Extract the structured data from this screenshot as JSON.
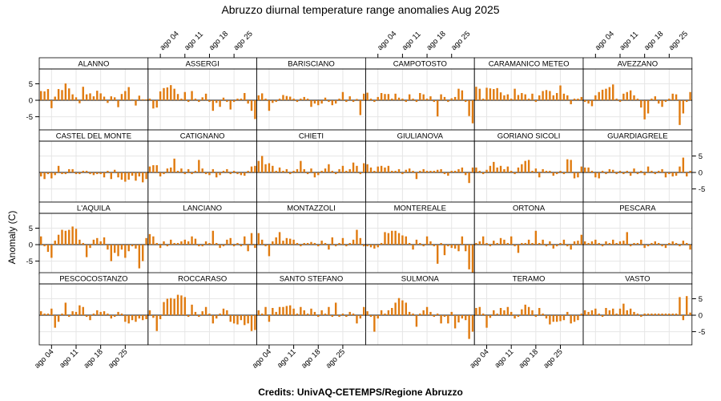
{
  "page": {
    "title": "Abruzzo diurnal temperature range anomalies Aug 2025",
    "credits": "Credits: UnivAQ-CETEMPS/Regione Abruzzo"
  },
  "colors": {
    "bar": "#e07b10",
    "zero_line": "#000000",
    "grid": "#e6e6e6",
    "panel_border": "#000000",
    "strip_bg": "#ffffff"
  },
  "chart_data": {
    "type": "bar",
    "layout": "4 rows x 6 columns small multiples",
    "ylabel": "Anomaly (C)",
    "ylim": [
      -9,
      9.5
    ],
    "yticks": [
      -5,
      0,
      5
    ],
    "ytick_labels": [
      "-5",
      "0",
      "5"
    ],
    "xlim": [
      0.5,
      31.5
    ],
    "xticks": [
      4,
      11,
      18,
      25
    ],
    "xtick_labels": [
      "ago 04",
      "ago 11",
      "ago 18",
      "ago 25"
    ],
    "grid": true,
    "panels": [
      {
        "name": "ALANNO",
        "values": [
          2.8,
          2.7,
          3.4,
          -2.4,
          1.1,
          3.4,
          3.1,
          5.1,
          3.6,
          1.8,
          0.9,
          -0.9,
          4.1,
          1.8,
          2.1,
          1.2,
          2.9,
          2.1,
          1.1,
          -0.8,
          1.2,
          0.9,
          -2.1,
          1.9,
          2.8,
          4.0,
          0.3,
          -1.6,
          1.4,
          0.3,
          0.3
        ]
      },
      {
        "name": "ASSERGI",
        "values": [
          0.5,
          -2.5,
          -2.2,
          2.7,
          3.7,
          3.9,
          4.6,
          3.5,
          1.9,
          0.5,
          2.5,
          -0.5,
          2.8,
          0.5,
          -0.5,
          0.9,
          2.0,
          -0.5,
          -3.2,
          -0.8,
          -2.0,
          0.8,
          -0.5,
          -2.8,
          -0.5,
          0.5,
          0.5,
          2.2,
          -1.0,
          -3.2,
          -5.7
        ]
      },
      {
        "name": "BARISCIANO",
        "values": [
          1.5,
          2.1,
          0.5,
          -3.2,
          -0.8,
          -0.5,
          0.5,
          1.6,
          1.3,
          1.1,
          0.5,
          -0.5,
          0.5,
          1.0,
          0.5,
          -2.0,
          -1.0,
          -1.5,
          -1.0,
          0.8,
          -0.5,
          -1.5,
          -1.0,
          0.5,
          2.5,
          -0.5,
          1.2,
          -0.5,
          0.4,
          -4.5,
          2.0
        ]
      },
      {
        "name": "CAMPOTOSTO",
        "values": [
          2.3,
          0.5,
          -0.5,
          1.0,
          2.2,
          1.9,
          1.9,
          0.5,
          2.0,
          0.8,
          0.5,
          -0.5,
          1.8,
          0.5,
          -0.5,
          2.2,
          1.8,
          0.5,
          1.2,
          -0.5,
          -4.9,
          1.8,
          1.0,
          -0.5,
          0.6,
          1.0,
          3.5,
          3.0,
          -0.5,
          -4.8,
          -7.0
        ]
      },
      {
        "name": "CARAMANICO METEO",
        "values": [
          4.1,
          3.5,
          0.5,
          3.8,
          3.6,
          3.4,
          3.7,
          2.4,
          1.5,
          1.8,
          0.5,
          3.5,
          1.6,
          2.2,
          1.8,
          0.5,
          2.0,
          -0.5,
          1.5,
          2.8,
          3.1,
          2.8,
          1.5,
          2.2,
          4.5,
          2.0,
          1.5,
          -1.2,
          0.5,
          0.5,
          1.0
        ]
      },
      {
        "name": "AVEZZANO",
        "values": [
          -0.5,
          -1.0,
          -1.8,
          1.5,
          2.5,
          3.2,
          3.5,
          4.0,
          4.8,
          0.5,
          -0.5,
          2.0,
          2.5,
          3.0,
          1.5,
          0.5,
          -2.2,
          -5.8,
          -4.0,
          0.5,
          1.2,
          -1.0,
          -2.0,
          -0.5,
          0.5,
          2.0,
          1.8,
          -7.5,
          -4.0,
          -0.5,
          2.5
        ]
      },
      {
        "name": "CASTEL DEL MONTE",
        "values": [
          -1.2,
          -2.0,
          -0.5,
          -1.8,
          -0.8,
          2.0,
          -0.5,
          -0.5,
          1.0,
          1.0,
          -0.5,
          -0.5,
          0.5,
          0.5,
          -0.5,
          -0.8,
          -0.5,
          -0.5,
          -1.5,
          0.5,
          -2.0,
          0.8,
          -1.5,
          -2.2,
          -2.8,
          -2.2,
          -1.0,
          -2.5,
          -1.2,
          -3.0,
          -2.0
        ]
      },
      {
        "name": "CATIGNANO",
        "values": [
          1.8,
          2.2,
          2.2,
          -1.2,
          -0.5,
          1.2,
          1.5,
          4.2,
          0.5,
          1.2,
          -0.5,
          1.0,
          -0.5,
          0.5,
          3.8,
          1.2,
          -0.5,
          -0.8,
          1.0,
          -1.5,
          -0.8,
          0.5,
          1.0,
          -0.5,
          0.5,
          -0.5,
          -0.8,
          -1.0,
          0.5,
          1.8,
          2.0
        ]
      },
      {
        "name": "CHIETI",
        "values": [
          3.5,
          5.0,
          2.5,
          2.8,
          2.0,
          0.5,
          1.5,
          0.5,
          1.0,
          -0.5,
          0.5,
          1.0,
          3.5,
          1.0,
          -0.5,
          1.2,
          -1.5,
          -0.8,
          0.5,
          1.2,
          2.5,
          0.5,
          -0.5,
          1.0,
          2.0,
          0.5,
          1.0,
          3.0,
          2.0,
          -0.5,
          2.8
        ]
      },
      {
        "name": "GIULIANOVA",
        "values": [
          2.5,
          1.5,
          0.5,
          1.8,
          2.0,
          1.5,
          2.0,
          0.5,
          0.5,
          1.0,
          -0.5,
          0.8,
          1.2,
          0.5,
          -2.0,
          0.5,
          1.0,
          0.5,
          0.5,
          0.5,
          0.8,
          1.0,
          -0.5,
          -1.0,
          0.5,
          0.5,
          1.0,
          1.5,
          -0.8,
          -3.2,
          1.5
        ]
      },
      {
        "name": "GORIANO SICOLI",
        "values": [
          1.5,
          0.5,
          -0.5,
          0.8,
          2.0,
          3.2,
          1.5,
          2.0,
          1.0,
          1.8,
          0.5,
          -0.5,
          1.5,
          2.5,
          3.5,
          3.8,
          0.5,
          1.2,
          -1.5,
          1.0,
          0.5,
          0.5,
          -1.0,
          -0.5,
          0.5,
          -0.5,
          4.0,
          3.8,
          -1.8,
          -1.5,
          1.8
        ]
      },
      {
        "name": "GUARDIAGRELE",
        "values": [
          1.5,
          1.5,
          0.5,
          -1.5,
          -1.8,
          0.5,
          -0.5,
          1.0,
          0.8,
          -0.5,
          0.5,
          -0.5,
          0.5,
          -1.0,
          1.2,
          -0.5,
          0.5,
          -0.8,
          1.8,
          0.5,
          -0.5,
          0.5,
          1.0,
          -1.5,
          -0.5,
          -1.2,
          -1.0,
          1.8,
          4.5,
          -1.2,
          0.5
        ]
      },
      {
        "name": "L'AQUILA",
        "values": [
          2.5,
          -0.5,
          -2.2,
          -4.0,
          1.2,
          3.0,
          4.5,
          4.2,
          4.5,
          5.5,
          4.8,
          1.5,
          0.5,
          -3.8,
          -1.0,
          1.5,
          2.0,
          1.0,
          2.2,
          -1.5,
          -5.0,
          -2.5,
          -3.5,
          -1.5,
          -4.0,
          -2.0,
          -0.5,
          -1.2,
          -7.2,
          -5.0,
          2.0
        ]
      },
      {
        "name": "LANCIANO",
        "values": [
          3.2,
          2.5,
          0.5,
          -1.0,
          1.0,
          -0.5,
          1.5,
          0.5,
          0.5,
          1.0,
          1.5,
          1.0,
          2.5,
          1.8,
          -0.5,
          -0.5,
          1.0,
          0.5,
          4.2,
          0.5,
          -1.0,
          -0.5,
          1.5,
          2.0,
          -0.5,
          0.5,
          -0.5,
          2.5,
          -2.0,
          3.5,
          -1.0
        ]
      },
      {
        "name": "MONTAZZOLI",
        "values": [
          3.5,
          1.5,
          -0.5,
          -3.5,
          1.0,
          2.2,
          3.8,
          1.2,
          2.0,
          1.8,
          1.5,
          0.5,
          -0.5,
          0.5,
          0.5,
          0.8,
          0.5,
          -0.5,
          1.2,
          0.5,
          -1.5,
          2.2,
          -0.5,
          0.5,
          2.0,
          -0.5,
          0.5,
          1.5,
          4.5,
          2.0,
          -0.5
        ]
      },
      {
        "name": "MONTEREALE",
        "values": [
          -0.5,
          -0.8,
          -1.2,
          -0.8,
          0.5,
          3.8,
          3.5,
          4.2,
          4.2,
          3.5,
          2.8,
          2.5,
          0.5,
          -1.5,
          1.5,
          0.5,
          -0.5,
          2.5,
          1.0,
          -0.5,
          -5.8,
          0.5,
          -3.2,
          -0.5,
          -1.0,
          -1.2,
          -2.0,
          2.5,
          -2.0,
          -7.5,
          -8.5
        ]
      },
      {
        "name": "ORTONA",
        "values": [
          0.5,
          1.0,
          2.5,
          0.5,
          -0.5,
          1.2,
          0.5,
          2.0,
          1.5,
          0.5,
          2.5,
          -0.5,
          -2.5,
          0.5,
          0.5,
          1.5,
          0.5,
          4.2,
          0.5,
          1.5,
          -0.5,
          1.0,
          -1.2,
          -0.5,
          0.5,
          1.5,
          -0.5,
          -1.5,
          1.0,
          1.2,
          3.0
        ]
      },
      {
        "name": "PESCARA",
        "values": [
          1.0,
          0.5,
          1.0,
          1.5,
          0.5,
          -0.5,
          1.0,
          0.5,
          1.5,
          0.5,
          1.0,
          1.2,
          3.8,
          -0.5,
          0.5,
          0.5,
          1.5,
          -1.0,
          -0.5,
          0.5,
          1.0,
          0.5,
          -0.5,
          -1.0,
          0.5,
          1.0,
          0.5,
          -0.5,
          1.2,
          0.5,
          -1.5
        ]
      },
      {
        "name": "PESCOCOSTANZO",
        "values": [
          1.2,
          0.5,
          0.5,
          2.0,
          -3.8,
          -2.0,
          0.5,
          3.8,
          -0.5,
          1.2,
          1.0,
          3.0,
          2.5,
          -0.5,
          -1.5,
          0.5,
          1.5,
          1.0,
          1.2,
          0.5,
          -1.0,
          -0.5,
          1.0,
          0.5,
          -2.0,
          -2.5,
          -1.5,
          -2.0,
          -1.0,
          -1.5,
          -1.2
        ]
      },
      {
        "name": "ROCCARASO",
        "values": [
          1.5,
          -0.8,
          -4.8,
          -1.2,
          4.0,
          5.0,
          5.2,
          5.0,
          6.2,
          6.0,
          5.5,
          -0.5,
          3.2,
          1.0,
          -0.5,
          1.2,
          2.5,
          0.5,
          -2.5,
          -1.0,
          0.5,
          2.0,
          1.5,
          -2.0,
          -2.5,
          -2.8,
          -1.5,
          -3.0,
          -2.5,
          -4.8,
          -4.5
        ]
      },
      {
        "name": "SANTO STEFANO",
        "values": [
          1.5,
          0.5,
          2.5,
          -2.0,
          2.2,
          1.0,
          2.5,
          2.5,
          2.8,
          3.0,
          2.0,
          0.5,
          2.5,
          1.5,
          0.5,
          2.0,
          1.0,
          -0.5,
          1.5,
          0.5,
          2.5,
          -0.5,
          3.8,
          -0.5,
          0.5,
          -0.5,
          1.0,
          0.5,
          -2.5,
          -1.0,
          2.5
        ]
      },
      {
        "name": "SULMONA",
        "values": [
          1.2,
          -0.5,
          -5.0,
          -1.0,
          1.5,
          0.5,
          1.5,
          2.2,
          3.8,
          5.2,
          4.5,
          3.8,
          1.0,
          0.5,
          -3.5,
          0.5,
          1.5,
          2.5,
          1.0,
          -0.5,
          0.5,
          -2.5,
          -0.5,
          -2.5,
          1.0,
          -4.0,
          -2.2,
          -1.0,
          -1.5,
          -7.2,
          -5.0
        ]
      },
      {
        "name": "TERAMO",
        "values": [
          2.2,
          2.5,
          0.5,
          -3.8,
          -0.8,
          1.5,
          0.5,
          2.2,
          1.5,
          2.5,
          1.0,
          -1.0,
          -0.5,
          1.8,
          3.2,
          2.5,
          1.5,
          -0.5,
          2.2,
          0.5,
          -1.0,
          -2.8,
          -2.0,
          -2.0,
          -1.8,
          -1.5,
          1.0,
          -2.5,
          -2.0,
          -1.5,
          0.5
        ]
      },
      {
        "name": "VASTO",
        "values": [
          1.5,
          1.0,
          1.5,
          2.0,
          0.5,
          -0.5,
          2.2,
          1.5,
          2.0,
          0.5,
          2.0,
          3.5,
          1.5,
          2.0,
          1.0,
          0.5,
          -0.5,
          0.5,
          0.5,
          0.5,
          0.5,
          0.5,
          0.5,
          0.5,
          0.5,
          0.5,
          0.5,
          5.5,
          -1.5,
          5.8,
          0.8
        ]
      }
    ]
  }
}
